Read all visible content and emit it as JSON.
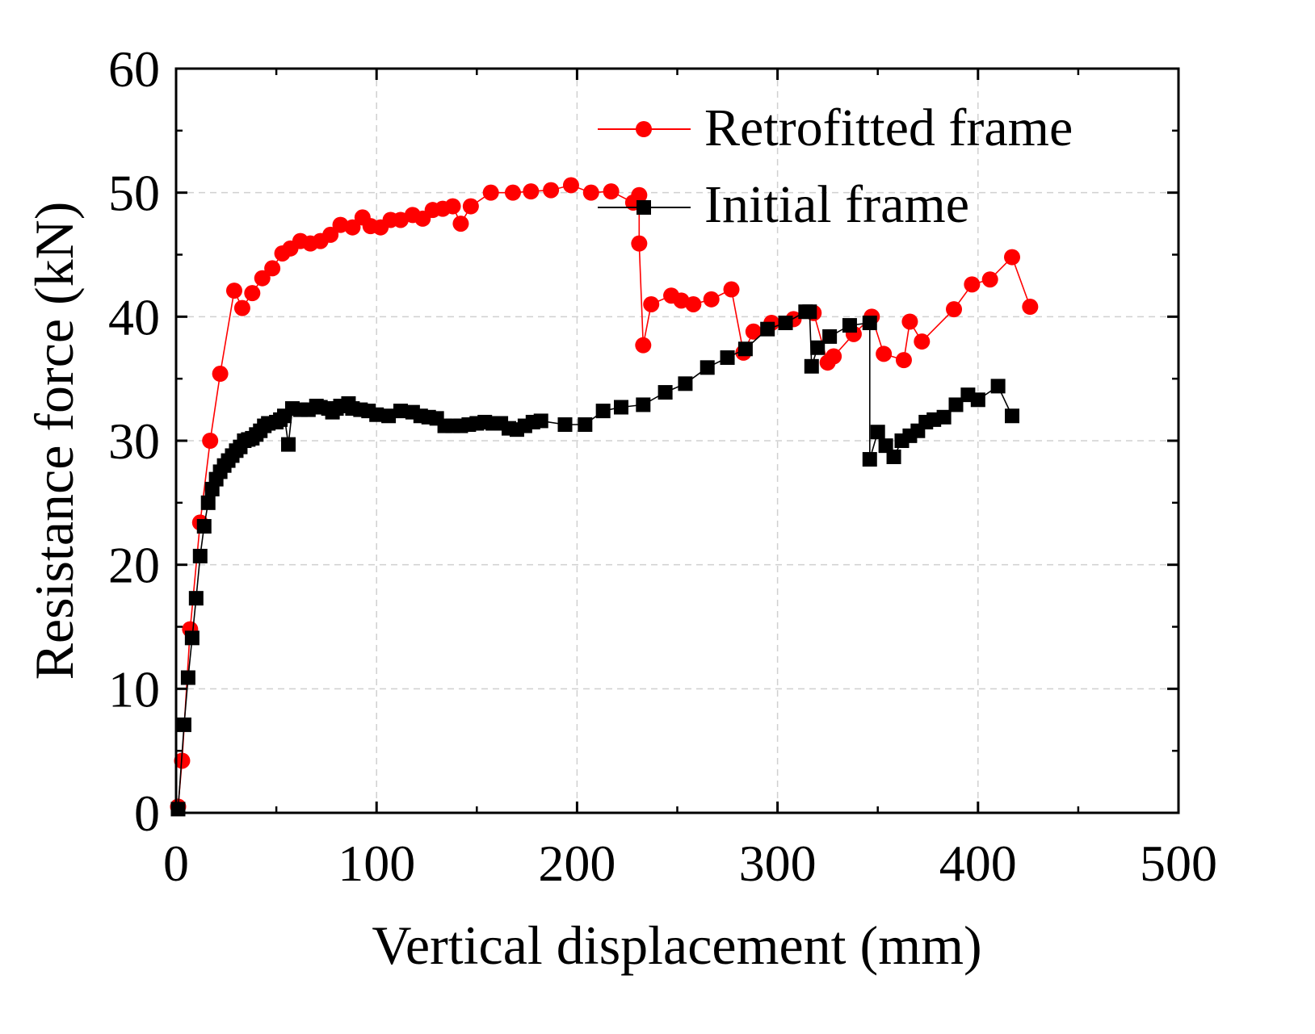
{
  "chart_data": {
    "type": "scatter",
    "xlabel": "Vertical displacement (mm)",
    "ylabel": "Resistance force (kN)",
    "xlim": [
      0,
      500
    ],
    "ylim": [
      0,
      60
    ],
    "xticks": [
      "0",
      "100",
      "200",
      "300",
      "400",
      "500"
    ],
    "yticks": [
      "0",
      "10",
      "20",
      "30",
      "40",
      "50",
      "60"
    ],
    "grid": true,
    "legend_position": "top-right",
    "series": [
      {
        "name": "Retrofitted frame",
        "color": "#ff0000",
        "marker": "circle",
        "points": [
          [
            1,
            0.5
          ],
          [
            3,
            4.2
          ],
          [
            7,
            14.8
          ],
          [
            12,
            23.4
          ],
          [
            17,
            30.0
          ],
          [
            22,
            35.4
          ],
          [
            29,
            42.1
          ],
          [
            33,
            40.7
          ],
          [
            38,
            41.9
          ],
          [
            43,
            43.1
          ],
          [
            48,
            43.9
          ],
          [
            53,
            45.1
          ],
          [
            57,
            45.5
          ],
          [
            62,
            46.1
          ],
          [
            67,
            45.9
          ],
          [
            72,
            46.1
          ],
          [
            77,
            46.6
          ],
          [
            82,
            47.4
          ],
          [
            88,
            47.2
          ],
          [
            93,
            48.0
          ],
          [
            97,
            47.3
          ],
          [
            102,
            47.2
          ],
          [
            107,
            47.8
          ],
          [
            112,
            47.8
          ],
          [
            118,
            48.2
          ],
          [
            123,
            47.9
          ],
          [
            128,
            48.6
          ],
          [
            133,
            48.7
          ],
          [
            138,
            48.9
          ],
          [
            142,
            47.5
          ],
          [
            147,
            48.9
          ],
          [
            157,
            50.0
          ],
          [
            168,
            50.0
          ],
          [
            177,
            50.1
          ],
          [
            187,
            50.2
          ],
          [
            197,
            50.6
          ],
          [
            207,
            50.0
          ],
          [
            217,
            50.1
          ],
          [
            228,
            49.2
          ],
          [
            231,
            49.8
          ],
          [
            231,
            45.9
          ],
          [
            233,
            37.7
          ],
          [
            237,
            41.0
          ],
          [
            247,
            41.7
          ],
          [
            252,
            41.3
          ],
          [
            258,
            41.0
          ],
          [
            267,
            41.4
          ],
          [
            277,
            42.2
          ],
          [
            283,
            37.1
          ],
          [
            288,
            38.8
          ],
          [
            297,
            39.5
          ],
          [
            308,
            39.8
          ],
          [
            318,
            40.3
          ],
          [
            325,
            36.3
          ],
          [
            328,
            36.8
          ],
          [
            338,
            38.6
          ],
          [
            347,
            40.0
          ],
          [
            353,
            37.0
          ],
          [
            363,
            36.5
          ],
          [
            366,
            39.6
          ],
          [
            372,
            38.0
          ],
          [
            388,
            40.6
          ],
          [
            397,
            42.6
          ],
          [
            406,
            43.0
          ],
          [
            417,
            44.8
          ],
          [
            426,
            40.8
          ]
        ]
      },
      {
        "name": "Initial frame",
        "color": "#000000",
        "marker": "square",
        "points": [
          [
            1,
            0.3
          ],
          [
            4,
            7.1
          ],
          [
            6,
            10.9
          ],
          [
            8,
            14.1
          ],
          [
            10,
            17.3
          ],
          [
            12,
            20.7
          ],
          [
            14,
            23.1
          ],
          [
            16,
            25.0
          ],
          [
            18,
            26.1
          ],
          [
            20,
            26.9
          ],
          [
            22,
            27.5
          ],
          [
            24,
            28.0
          ],
          [
            26,
            28.4
          ],
          [
            28,
            28.8
          ],
          [
            30,
            29.2
          ],
          [
            32,
            29.5
          ],
          [
            34,
            30.0
          ],
          [
            36,
            30.1
          ],
          [
            38,
            30.2
          ],
          [
            40,
            30.5
          ],
          [
            42,
            30.8
          ],
          [
            44,
            31.2
          ],
          [
            46,
            31.4
          ],
          [
            50,
            31.5
          ],
          [
            52,
            31.7
          ],
          [
            54,
            32.0
          ],
          [
            56,
            29.7
          ],
          [
            58,
            32.6
          ],
          [
            62,
            32.5
          ],
          [
            66,
            32.5
          ],
          [
            70,
            32.8
          ],
          [
            72,
            32.7
          ],
          [
            76,
            32.6
          ],
          [
            78,
            32.3
          ],
          [
            80,
            32.6
          ],
          [
            82,
            32.8
          ],
          [
            86,
            33.0
          ],
          [
            88,
            32.6
          ],
          [
            92,
            32.5
          ],
          [
            96,
            32.4
          ],
          [
            100,
            32.1
          ],
          [
            106,
            32.0
          ],
          [
            112,
            32.4
          ],
          [
            118,
            32.3
          ],
          [
            122,
            32.0
          ],
          [
            126,
            31.9
          ],
          [
            130,
            31.8
          ],
          [
            134,
            31.2
          ],
          [
            138,
            31.2
          ],
          [
            142,
            31.2
          ],
          [
            146,
            31.3
          ],
          [
            150,
            31.4
          ],
          [
            154,
            31.5
          ],
          [
            158,
            31.4
          ],
          [
            162,
            31.4
          ],
          [
            166,
            31.0
          ],
          [
            170,
            30.9
          ],
          [
            174,
            31.2
          ],
          [
            178,
            31.5
          ],
          [
            182,
            31.6
          ],
          [
            194,
            31.3
          ],
          [
            204,
            31.3
          ],
          [
            213,
            32.4
          ],
          [
            222,
            32.7
          ],
          [
            233,
            32.9
          ],
          [
            244,
            33.9
          ],
          [
            254,
            34.6
          ],
          [
            265,
            35.9
          ],
          [
            275,
            36.7
          ],
          [
            284,
            37.4
          ],
          [
            295,
            39.0
          ],
          [
            304,
            39.5
          ],
          [
            314,
            40.4
          ],
          [
            316,
            40.4
          ],
          [
            317,
            36.0
          ],
          [
            320,
            37.5
          ],
          [
            326,
            38.4
          ],
          [
            336,
            39.3
          ],
          [
            346,
            39.5
          ],
          [
            346,
            28.5
          ],
          [
            350,
            30.7
          ],
          [
            354,
            29.6
          ],
          [
            358,
            28.7
          ],
          [
            362,
            30.0
          ],
          [
            366,
            30.4
          ],
          [
            370,
            30.8
          ],
          [
            374,
            31.5
          ],
          [
            378,
            31.7
          ],
          [
            383,
            31.9
          ],
          [
            389,
            32.9
          ],
          [
            395,
            33.7
          ],
          [
            400,
            33.3
          ],
          [
            410,
            34.4
          ],
          [
            417,
            32.0
          ]
        ]
      }
    ]
  }
}
